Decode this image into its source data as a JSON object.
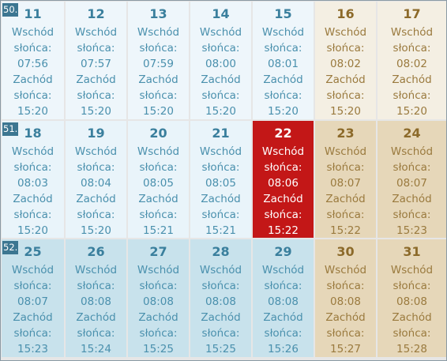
{
  "calendar": {
    "sunrise_label": "Wschód",
    "sunset_label": "Zachód",
    "sun_word": "słońca:",
    "weeks": [
      {
        "number": "50.",
        "days": [
          {
            "day": "11",
            "sunrise": "07:56",
            "sunset": "15:20"
          },
          {
            "day": "12",
            "sunrise": "07:57",
            "sunset": "15:20"
          },
          {
            "day": "13",
            "sunrise": "07:59",
            "sunset": "15:20"
          },
          {
            "day": "14",
            "sunrise": "08:00",
            "sunset": "15:20"
          },
          {
            "day": "15",
            "sunrise": "08:01",
            "sunset": "15:20"
          },
          {
            "day": "16",
            "sunrise": "08:02",
            "sunset": "15:20"
          },
          {
            "day": "17",
            "sunrise": "08:02",
            "sunset": "15:20"
          }
        ]
      },
      {
        "number": "51.",
        "days": [
          {
            "day": "18",
            "sunrise": "08:03",
            "sunset": "15:20"
          },
          {
            "day": "19",
            "sunrise": "08:04",
            "sunset": "15:20"
          },
          {
            "day": "20",
            "sunrise": "08:05",
            "sunset": "15:21"
          },
          {
            "day": "21",
            "sunrise": "08:05",
            "sunset": "15:21"
          },
          {
            "day": "22",
            "sunrise": "08:06",
            "sunset": "15:22",
            "today": true
          },
          {
            "day": "23",
            "sunrise": "08:07",
            "sunset": "15:22"
          },
          {
            "day": "24",
            "sunrise": "08:07",
            "sunset": "15:23"
          }
        ]
      },
      {
        "number": "52.",
        "days": [
          {
            "day": "25",
            "sunrise": "08:07",
            "sunset": "15:23"
          },
          {
            "day": "26",
            "sunrise": "08:08",
            "sunset": "15:24"
          },
          {
            "day": "27",
            "sunrise": "08:08",
            "sunset": "15:25"
          },
          {
            "day": "28",
            "sunrise": "08:08",
            "sunset": "15:25"
          },
          {
            "day": "29",
            "sunrise": "08:08",
            "sunset": "15:26"
          },
          {
            "day": "30",
            "sunrise": "08:08",
            "sunset": "15:27"
          },
          {
            "day": "31",
            "sunrise": "08:08",
            "sunset": "15:28"
          }
        ]
      }
    ],
    "colors": {
      "today": "#c31717",
      "weekday_text": "#3e8aa8",
      "weekend_text": "#8c6a2a",
      "week_number_bg": "#3c7691"
    }
  }
}
